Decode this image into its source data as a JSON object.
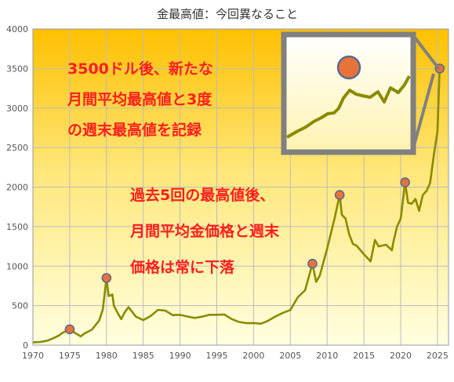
{
  "chart_data": {
    "type": "line",
    "title": "金最高値：今回異なること",
    "xlabel": "",
    "ylabel": "",
    "xlim": [
      1970,
      2026.5
    ],
    "ylim": [
      0,
      4000
    ],
    "grid": true,
    "x_ticks": [
      "1970",
      "1975",
      "1980",
      "1985",
      "1990",
      "1995",
      "2000",
      "2005",
      "2010",
      "2015",
      "2020",
      "2025"
    ],
    "y_ticks": [
      "0",
      "500",
      "1000",
      "1500",
      "2000",
      "2500",
      "3000",
      "3500",
      "4000"
    ],
    "series": [
      {
        "name": "",
        "color": "#8a8a00",
        "x": [
          1970,
          1971,
          1972,
          1973,
          1973.5,
          1974,
          1974.5,
          1975,
          1975.8,
          1976.5,
          1977,
          1978,
          1979,
          1979.5,
          1980,
          1980.3,
          1980.8,
          1981,
          1981.5,
          1982,
          1982.5,
          1983,
          1983.5,
          1984,
          1985,
          1986,
          1987,
          1988,
          1989,
          1990,
          1991,
          1992,
          1993,
          1994,
          1995,
          1996,
          1997,
          1998,
          1999,
          2000,
          2001,
          2002,
          2003,
          2004,
          2005,
          2006,
          2007,
          2008,
          2008.5,
          2009,
          2010,
          2011,
          2011.7,
          2012,
          2012.5,
          2013,
          2013.5,
          2014,
          2015,
          2015.9,
          2016.5,
          2017,
          2018,
          2018.8,
          2019,
          2019.5,
          2020,
          2020.6,
          2021,
          2021.5,
          2022,
          2022.5,
          2023,
          2023.5,
          2024,
          2024.5,
          2025,
          2025.3
        ],
        "values": [
          36,
          40,
          58,
          97,
          120,
          154,
          180,
          200,
          150,
          110,
          148,
          195,
          310,
          450,
          850,
          620,
          640,
          500,
          410,
          330,
          420,
          480,
          420,
          360,
          317,
          368,
          447,
          437,
          380,
          383,
          362,
          343,
          360,
          384,
          384,
          388,
          331,
          294,
          279,
          280,
          271,
          310,
          364,
          409,
          445,
          604,
          695,
          1030,
          800,
          880,
          1220,
          1600,
          1900,
          1650,
          1600,
          1400,
          1280,
          1260,
          1150,
          1060,
          1330,
          1250,
          1270,
          1200,
          1300,
          1500,
          1600,
          2060,
          1800,
          1790,
          1850,
          1700,
          1900,
          1950,
          2050,
          2400,
          2700,
          3500
        ]
      }
    ],
    "markers": [
      {
        "x": 1975,
        "y": 200
      },
      {
        "x": 1980,
        "y": 850
      },
      {
        "x": 2008,
        "y": 1030
      },
      {
        "x": 2011.7,
        "y": 1900
      },
      {
        "x": 2020.6,
        "y": 2060
      },
      {
        "x": 2025.3,
        "y": 3500
      }
    ],
    "annotations": {
      "block1": [
        "3500ドル後、新たな",
        "月間平均最高値と3度",
        "の週末最高値を記録"
      ],
      "block2": [
        "過去5回の最高値後、",
        "月間平均金価格と週末",
        "価格は常に下落"
      ]
    },
    "colors": {
      "line": "#8a8a00",
      "marker_fill": "#e8733a",
      "marker_stroke": "#5b6a8a",
      "annotation": "#ff1e1e",
      "inset_frame": "#808080",
      "bg_top": "#ffc000",
      "bg_bottom": "#ffffe0"
    }
  }
}
